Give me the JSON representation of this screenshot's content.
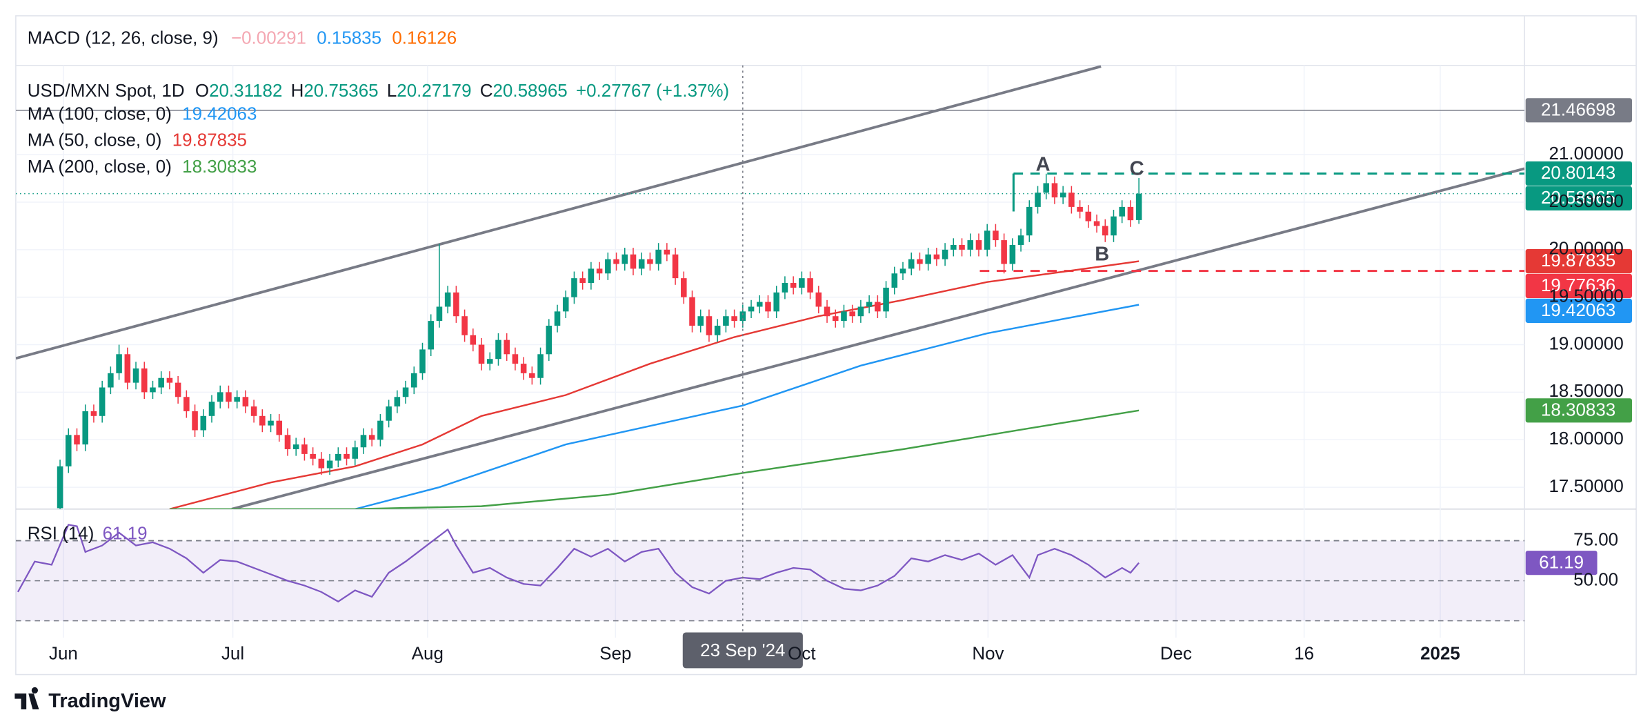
{
  "macd": {
    "title": "MACD (12, 26, close, 9)",
    "values": [
      -0.00291,
      0.15835,
      0.16126
    ],
    "value_labels": [
      "−0.00291",
      "0.15835",
      "0.16126"
    ],
    "colors": [
      "#f4a7b2",
      "#2196f3",
      "#ff6d00"
    ]
  },
  "brand": "TradingView",
  "chart_data": [
    {
      "type": "candlestick",
      "title": "USD/MXN Spot, 1D",
      "ohlc_keys": [
        "O",
        "H",
        "L",
        "C"
      ],
      "change": "+0.27767 (+1.37%)",
      "up_color": "#089981",
      "down_color": "#f23645",
      "crosshair_label": "23 Sep '24",
      "annotations": [
        "A",
        "B",
        "C"
      ],
      "xlim": [
        -5.25,
        173.75
      ],
      "xticks": [
        {
          "value": 0.4,
          "label": "Jun"
        },
        {
          "value": 20.5,
          "label": "Jul"
        },
        {
          "value": 43.6,
          "label": "Aug"
        },
        {
          "value": 65.9,
          "label": "Sep"
        },
        {
          "value": 88,
          "label": "Oct"
        },
        {
          "value": 110.1,
          "label": "Nov"
        },
        {
          "value": 132.4,
          "label": "Dec"
        },
        {
          "value": 147.6,
          "label": "16"
        },
        {
          "value": 163.75,
          "label": "2025"
        }
      ],
      "ylim": [
        17.27,
        21.94
      ],
      "yticks": [
        {
          "value": 21,
          "label": "21.00000"
        },
        {
          "value": 20.5,
          "label": "20.50000"
        },
        {
          "value": 20,
          "label": "20.00000"
        },
        {
          "value": 19.5,
          "label": "19.50000"
        },
        {
          "value": 19,
          "label": "19.00000"
        },
        {
          "value": 18.5,
          "label": "18.50000"
        },
        {
          "value": 18,
          "label": "18.00000"
        },
        {
          "value": 17.5,
          "label": "17.50000"
        }
      ],
      "grid": true,
      "levels": [
        {
          "value": 21.46698,
          "color": "#787b86"
        },
        {
          "value": 20.80143,
          "color": "#089981"
        },
        {
          "value": 19.77636,
          "color": "#f23645"
        }
      ],
      "open": [
        17.28,
        17.72,
        18.05,
        17.95,
        18.3,
        18.25,
        18.55,
        18.7,
        18.9,
        18.6,
        18.75,
        18.5,
        18.55,
        18.65,
        18.6,
        18.45,
        18.3,
        18.1,
        18.25,
        18.4,
        18.5,
        18.4,
        18.45,
        18.35,
        18.25,
        18.15,
        18.2,
        18.05,
        17.9,
        17.95,
        17.85,
        17.8,
        17.7,
        17.78,
        17.85,
        17.8,
        17.92,
        18.05,
        18.0,
        18.2,
        18.35,
        18.45,
        18.55,
        18.7,
        18.95,
        19.25,
        19.4,
        19.55,
        19.3,
        19.1,
        19.0,
        18.8,
        18.85,
        19.05,
        18.9,
        18.8,
        18.7,
        18.65,
        18.9,
        19.2,
        19.35,
        19.5,
        19.7,
        19.65,
        19.8,
        19.75,
        19.9,
        19.85,
        19.95,
        19.8,
        19.9,
        19.85,
        20.0,
        19.95,
        19.7,
        19.5,
        19.2,
        19.3,
        19.1,
        19.2,
        19.3,
        19.25,
        19.35,
        19.4,
        19.45,
        19.35,
        19.55,
        19.65,
        19.6,
        19.7,
        19.55,
        19.4,
        19.3,
        19.25,
        19.35,
        19.3,
        19.4,
        19.45,
        19.35,
        19.6,
        19.75,
        19.8,
        19.9,
        19.85,
        19.95,
        19.9,
        20.0,
        20.05,
        20.0,
        20.1,
        20.0,
        20.2,
        20.1,
        19.85,
        20.05,
        20.15,
        20.45,
        20.6,
        20.7,
        20.55,
        20.6,
        20.45,
        20.4,
        20.3,
        20.25,
        20.15,
        20.35,
        20.45,
        20.31182
      ],
      "high": [
        17.79,
        18.12,
        18.12,
        18.37,
        18.37,
        18.62,
        18.77,
        19.0,
        18.97,
        18.82,
        18.82,
        18.62,
        18.72,
        18.72,
        18.67,
        18.52,
        18.37,
        18.32,
        18.47,
        18.57,
        18.57,
        18.52,
        18.52,
        18.42,
        18.32,
        18.27,
        18.27,
        18.12,
        18.02,
        18.02,
        17.92,
        17.87,
        17.85,
        17.92,
        17.92,
        17.99,
        18.12,
        18.12,
        18.27,
        18.42,
        18.52,
        18.62,
        18.77,
        19.02,
        19.32,
        20.06,
        19.62,
        19.62,
        19.37,
        19.17,
        19.07,
        18.92,
        19.12,
        19.12,
        18.97,
        18.87,
        18.77,
        18.97,
        19.27,
        19.42,
        19.57,
        19.77,
        19.77,
        19.87,
        19.87,
        19.97,
        19.97,
        20.02,
        20.02,
        19.97,
        19.97,
        20.07,
        20.07,
        20.02,
        19.77,
        19.57,
        19.37,
        19.37,
        19.27,
        19.37,
        19.37,
        19.42,
        19.47,
        19.52,
        19.52,
        19.62,
        19.72,
        19.72,
        19.77,
        19.77,
        19.62,
        19.47,
        19.37,
        19.42,
        19.42,
        19.47,
        19.52,
        19.52,
        19.67,
        19.82,
        19.87,
        19.97,
        19.97,
        20.02,
        20.02,
        20.07,
        20.12,
        20.12,
        20.17,
        20.17,
        20.27,
        20.27,
        20.17,
        20.12,
        20.22,
        20.52,
        20.67,
        20.8,
        20.77,
        20.67,
        20.67,
        20.52,
        20.47,
        20.37,
        20.32,
        20.42,
        20.52,
        20.52,
        20.75365
      ],
      "low": [
        17.25,
        17.65,
        17.88,
        17.88,
        18.18,
        18.18,
        18.48,
        18.63,
        18.53,
        18.53,
        18.43,
        18.43,
        18.48,
        18.53,
        18.38,
        18.23,
        18.03,
        18.03,
        18.18,
        18.33,
        18.33,
        18.33,
        18.28,
        18.18,
        18.08,
        18.08,
        17.98,
        17.83,
        17.83,
        17.78,
        17.73,
        17.63,
        17.63,
        17.71,
        17.73,
        17.73,
        17.85,
        17.93,
        17.93,
        18.13,
        18.28,
        18.38,
        18.48,
        18.63,
        18.88,
        19.18,
        19.33,
        19.23,
        19.03,
        18.93,
        18.73,
        18.73,
        18.78,
        18.83,
        18.73,
        18.63,
        18.58,
        18.58,
        18.83,
        19.13,
        19.28,
        19.43,
        19.58,
        19.58,
        19.68,
        19.68,
        19.78,
        19.78,
        19.73,
        19.73,
        19.78,
        19.78,
        19.88,
        19.63,
        19.43,
        19.13,
        19.13,
        19.03,
        19.03,
        19.13,
        19.18,
        19.18,
        19.28,
        19.33,
        19.28,
        19.28,
        19.48,
        19.53,
        19.53,
        19.48,
        19.33,
        19.23,
        19.18,
        19.18,
        19.23,
        19.23,
        19.33,
        19.28,
        19.28,
        19.53,
        19.68,
        19.73,
        19.78,
        19.78,
        19.83,
        19.83,
        19.93,
        19.93,
        19.93,
        19.93,
        19.93,
        20.03,
        19.75,
        19.78,
        19.98,
        20.08,
        20.38,
        20.53,
        20.48,
        20.48,
        20.38,
        20.33,
        20.23,
        20.18,
        20.08,
        20.08,
        20.28,
        20.24,
        20.27179
      ],
      "close": [
        17.72,
        18.05,
        17.95,
        18.3,
        18.25,
        18.55,
        18.7,
        18.9,
        18.6,
        18.75,
        18.5,
        18.55,
        18.65,
        18.6,
        18.45,
        18.3,
        18.1,
        18.25,
        18.4,
        18.5,
        18.4,
        18.45,
        18.35,
        18.25,
        18.15,
        18.2,
        18.05,
        17.9,
        17.95,
        17.85,
        17.8,
        17.7,
        17.78,
        17.85,
        17.8,
        17.92,
        18.05,
        18.0,
        18.2,
        18.35,
        18.45,
        18.55,
        18.7,
        18.95,
        19.25,
        19.4,
        19.55,
        19.3,
        19.1,
        19.0,
        18.8,
        18.85,
        19.05,
        18.9,
        18.8,
        18.7,
        18.65,
        18.9,
        19.2,
        19.35,
        19.5,
        19.7,
        19.65,
        19.8,
        19.75,
        19.9,
        19.85,
        19.95,
        19.8,
        19.9,
        19.85,
        20.0,
        19.95,
        19.7,
        19.5,
        19.2,
        19.3,
        19.1,
        19.2,
        19.3,
        19.25,
        19.35,
        19.4,
        19.45,
        19.35,
        19.55,
        19.65,
        19.6,
        19.7,
        19.55,
        19.4,
        19.3,
        19.25,
        19.35,
        19.3,
        19.4,
        19.45,
        19.35,
        19.6,
        19.75,
        19.8,
        19.9,
        19.85,
        19.95,
        19.9,
        20.0,
        20.05,
        20.0,
        20.1,
        20.0,
        20.2,
        20.1,
        19.85,
        20.05,
        20.15,
        20.45,
        20.6,
        20.7,
        20.55,
        20.6,
        20.45,
        20.4,
        20.3,
        20.25,
        20.15,
        20.35,
        20.45,
        20.31,
        20.58965
      ],
      "series": [
        {
          "name": "MA (100, close, 0)",
          "color": "#2196f3",
          "x": [
            35,
            45,
            60,
            81,
            95,
            110,
            128
          ],
          "values": [
            17.27,
            17.5,
            17.95,
            18.36,
            18.78,
            19.12,
            19.42063
          ]
        },
        {
          "name": "MA (50, close, 0)",
          "color": "#e53935",
          "x": [
            13,
            25,
            35,
            43,
            50,
            60,
            70,
            80,
            90,
            100,
            110,
            120,
            128
          ],
          "values": [
            17.27,
            17.55,
            17.72,
            17.95,
            18.25,
            18.47,
            18.8,
            19.08,
            19.3,
            19.47,
            19.66,
            19.78,
            19.87835
          ]
        },
        {
          "name": "MA (200, close, 0)",
          "color": "#43a047",
          "x": [
            13,
            35,
            50,
            65,
            81,
            100,
            115,
            128
          ],
          "values": [
            17.27,
            17.27,
            17.3,
            17.42,
            17.65,
            17.9,
            18.12,
            18.30833
          ]
        }
      ]
    },
    {
      "type": "line",
      "title": "RSI (14)",
      "color": "#7e57c2",
      "ylim": [
        14.47,
        94.74
      ],
      "yticks": [
        {
          "value": 75,
          "label": "75.00"
        },
        {
          "value": 50,
          "label": "50.00"
        }
      ],
      "band": [
        25,
        75
      ],
      "x": [
        -5,
        -3,
        -1,
        1,
        2,
        3,
        5,
        7,
        9,
        11,
        13,
        15,
        17,
        19,
        21,
        23,
        25,
        27,
        29,
        31,
        33,
        35,
        37,
        39,
        41,
        43,
        45,
        46,
        47,
        49,
        51,
        53,
        55,
        57,
        59,
        61,
        63,
        65,
        67,
        69,
        71,
        73,
        75,
        77,
        79,
        81,
        83,
        85,
        87,
        89,
        91,
        93,
        95,
        97,
        99,
        101,
        103,
        105,
        107,
        109,
        111,
        113,
        115,
        116,
        118,
        120,
        122,
        124,
        126,
        127,
        128
      ],
      "values": [
        43,
        62,
        60,
        85,
        84,
        68,
        72,
        80,
        72,
        74,
        70,
        64,
        55,
        63,
        62,
        58,
        54,
        50,
        47,
        43,
        37,
        44,
        40,
        55,
        62,
        70,
        78,
        82,
        72,
        55,
        58,
        52,
        48,
        47,
        58,
        70,
        65,
        70,
        62,
        68,
        70,
        55,
        46,
        42,
        50,
        52,
        51,
        55,
        58,
        57,
        50,
        45,
        44,
        47,
        53,
        64,
        62,
        66,
        63,
        67,
        60,
        66,
        52,
        66,
        70,
        66,
        60,
        52,
        58,
        55,
        61.19
      ]
    }
  ]
}
